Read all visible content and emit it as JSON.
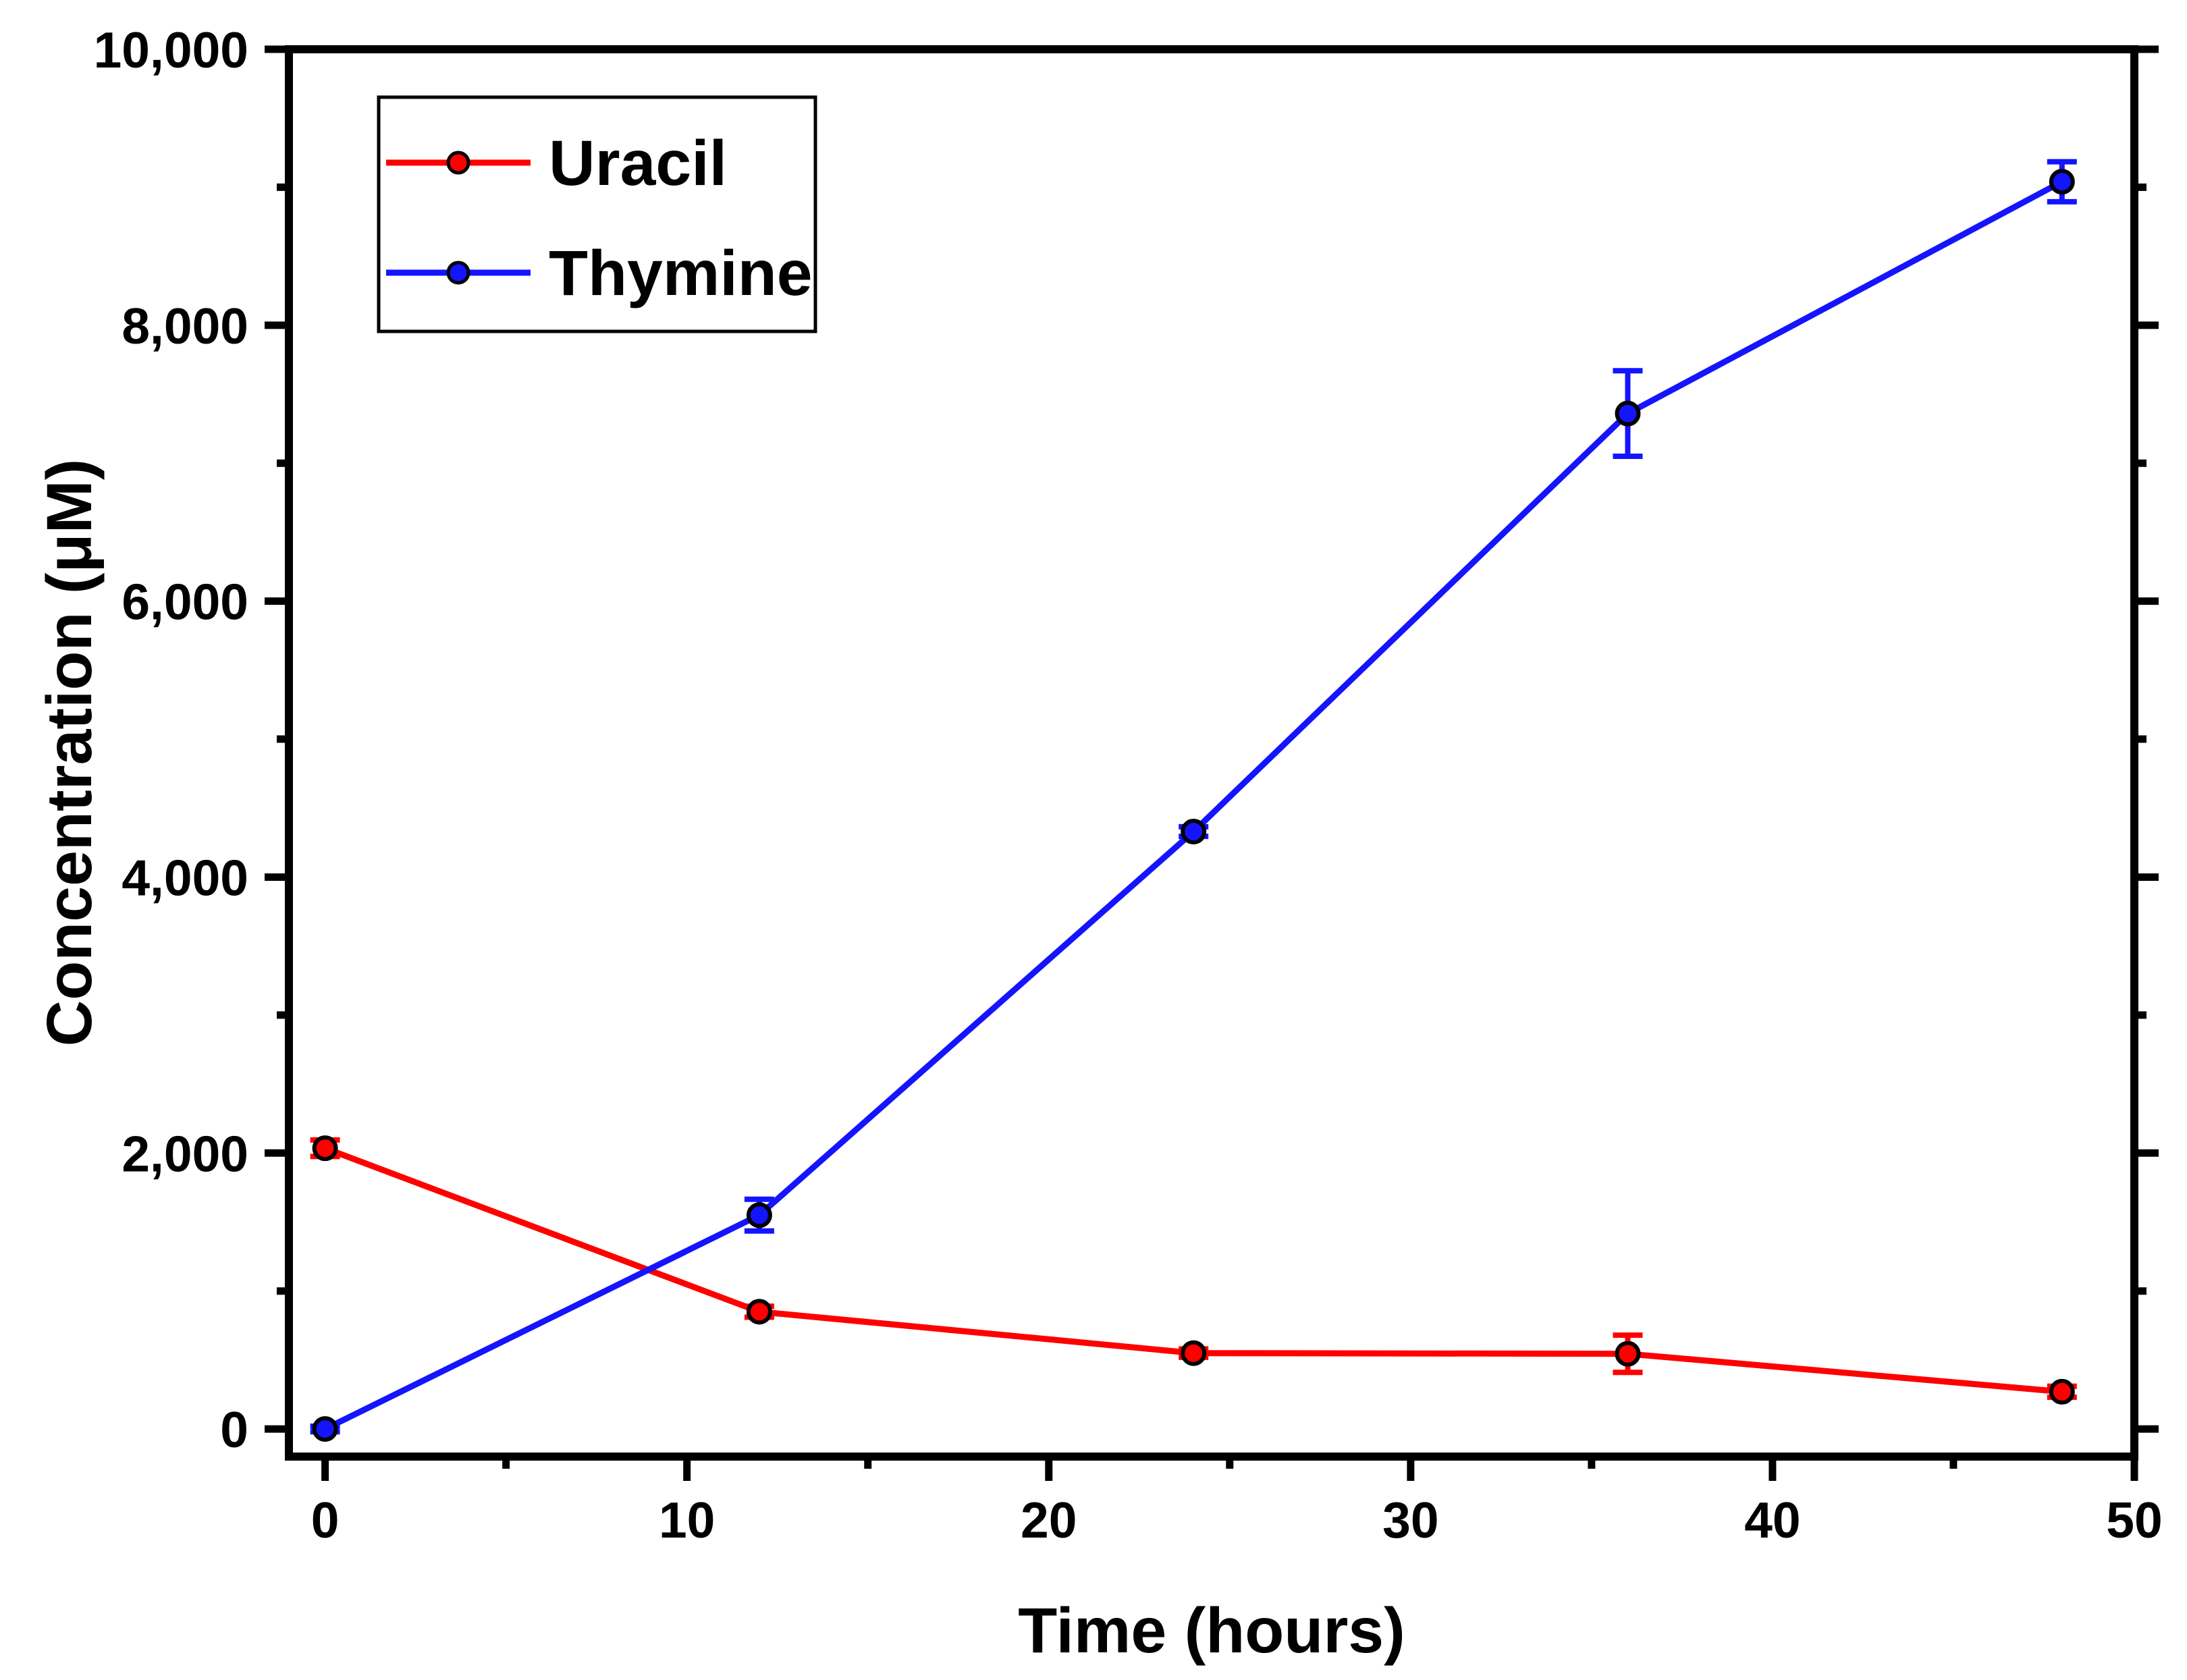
{
  "page": {
    "background": "#ffffff"
  },
  "colors": {
    "axis": "#000000",
    "text": "#000000",
    "background": "#ffffff"
  },
  "chart_data": {
    "type": "line",
    "title": "",
    "xlabel": "Time (hours)",
    "ylabel": "Concentration (μM)",
    "x_axis": {
      "label": "Time (hours)",
      "min": -1,
      "max": 50,
      "major_ticks": [
        0,
        10,
        20,
        30,
        40,
        50
      ],
      "tick_labels": [
        "0",
        "10",
        "20",
        "30",
        "40",
        "50"
      ],
      "minor_ticks": [
        5,
        15,
        25,
        35,
        45
      ]
    },
    "y_axis": {
      "label": "Concentration (μM)",
      "min": -200,
      "max": 10000,
      "major_ticks": [
        0,
        2000,
        4000,
        6000,
        8000,
        10000
      ],
      "tick_labels": [
        "0",
        "2,000",
        "4,000",
        "6,000",
        "8,000",
        "10,000"
      ],
      "minor_ticks": [
        1000,
        3000,
        5000,
        7000,
        9000
      ]
    },
    "x": [
      0,
      12,
      24,
      36,
      48
    ],
    "series": [
      {
        "name": "Uracil",
        "color": "#ff0000",
        "values": [
          2035,
          850,
          550,
          545,
          270
        ],
        "errors": [
          60,
          40,
          30,
          135,
          40
        ]
      },
      {
        "name": "Thymine",
        "color": "#1414ff",
        "values": [
          0,
          1550,
          4330,
          7360,
          9040
        ],
        "errors": [
          20,
          115,
          35,
          310,
          145
        ]
      }
    ],
    "legend": {
      "position": "top-left",
      "entries": [
        "Uracil",
        "Thymine"
      ]
    },
    "grid": false
  }
}
